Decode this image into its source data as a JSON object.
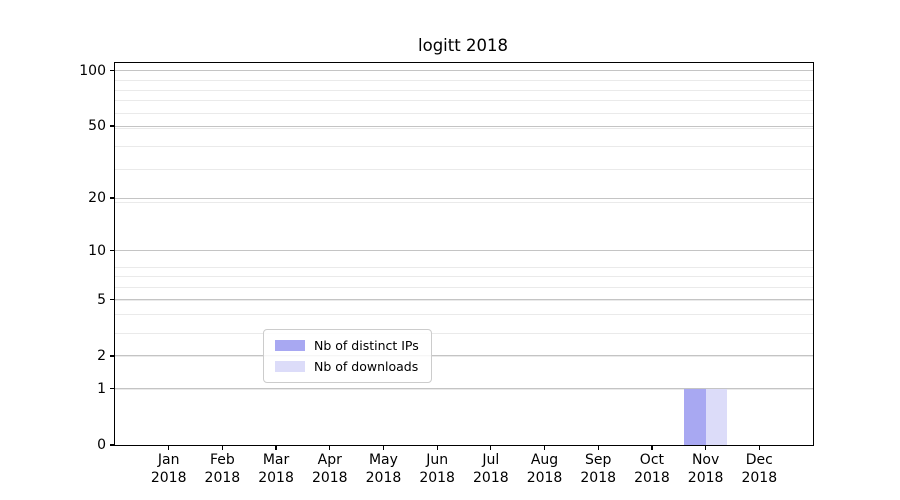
{
  "chart_data": {
    "type": "bar",
    "title": "logitt 2018",
    "categories": [
      "Jan 2018",
      "Feb 2018",
      "Mar 2018",
      "Apr 2018",
      "May 2018",
      "Jun 2018",
      "Jul 2018",
      "Aug 2018",
      "Sep 2018",
      "Oct 2018",
      "Nov 2018",
      "Dec 2018"
    ],
    "series": [
      {
        "name": "Nb of distinct IPs",
        "color": "#a8a8f2",
        "values": [
          0,
          0,
          0,
          0,
          0,
          0,
          0,
          0,
          0,
          0,
          1,
          0
        ]
      },
      {
        "name": "Nb of downloads",
        "color": "#dcdcf9",
        "values": [
          0,
          0,
          0,
          0,
          0,
          0,
          0,
          0,
          0,
          0,
          1,
          0
        ]
      }
    ],
    "xlabel": "",
    "ylabel": "",
    "y_scale": "log1p",
    "y_ticks": [
      0,
      1,
      2,
      5,
      10,
      20,
      50,
      100
    ],
    "ylim": [
      0,
      110
    ],
    "minor_gridline_values": [
      1,
      2,
      3,
      4,
      5,
      6,
      7,
      8,
      19,
      29,
      39,
      49,
      59,
      69,
      79,
      89
    ],
    "grid": "horizontal major+minor",
    "legend": {
      "position": "inside lower-center",
      "items": [
        "Nb of distinct IPs",
        "Nb of downloads"
      ]
    }
  }
}
